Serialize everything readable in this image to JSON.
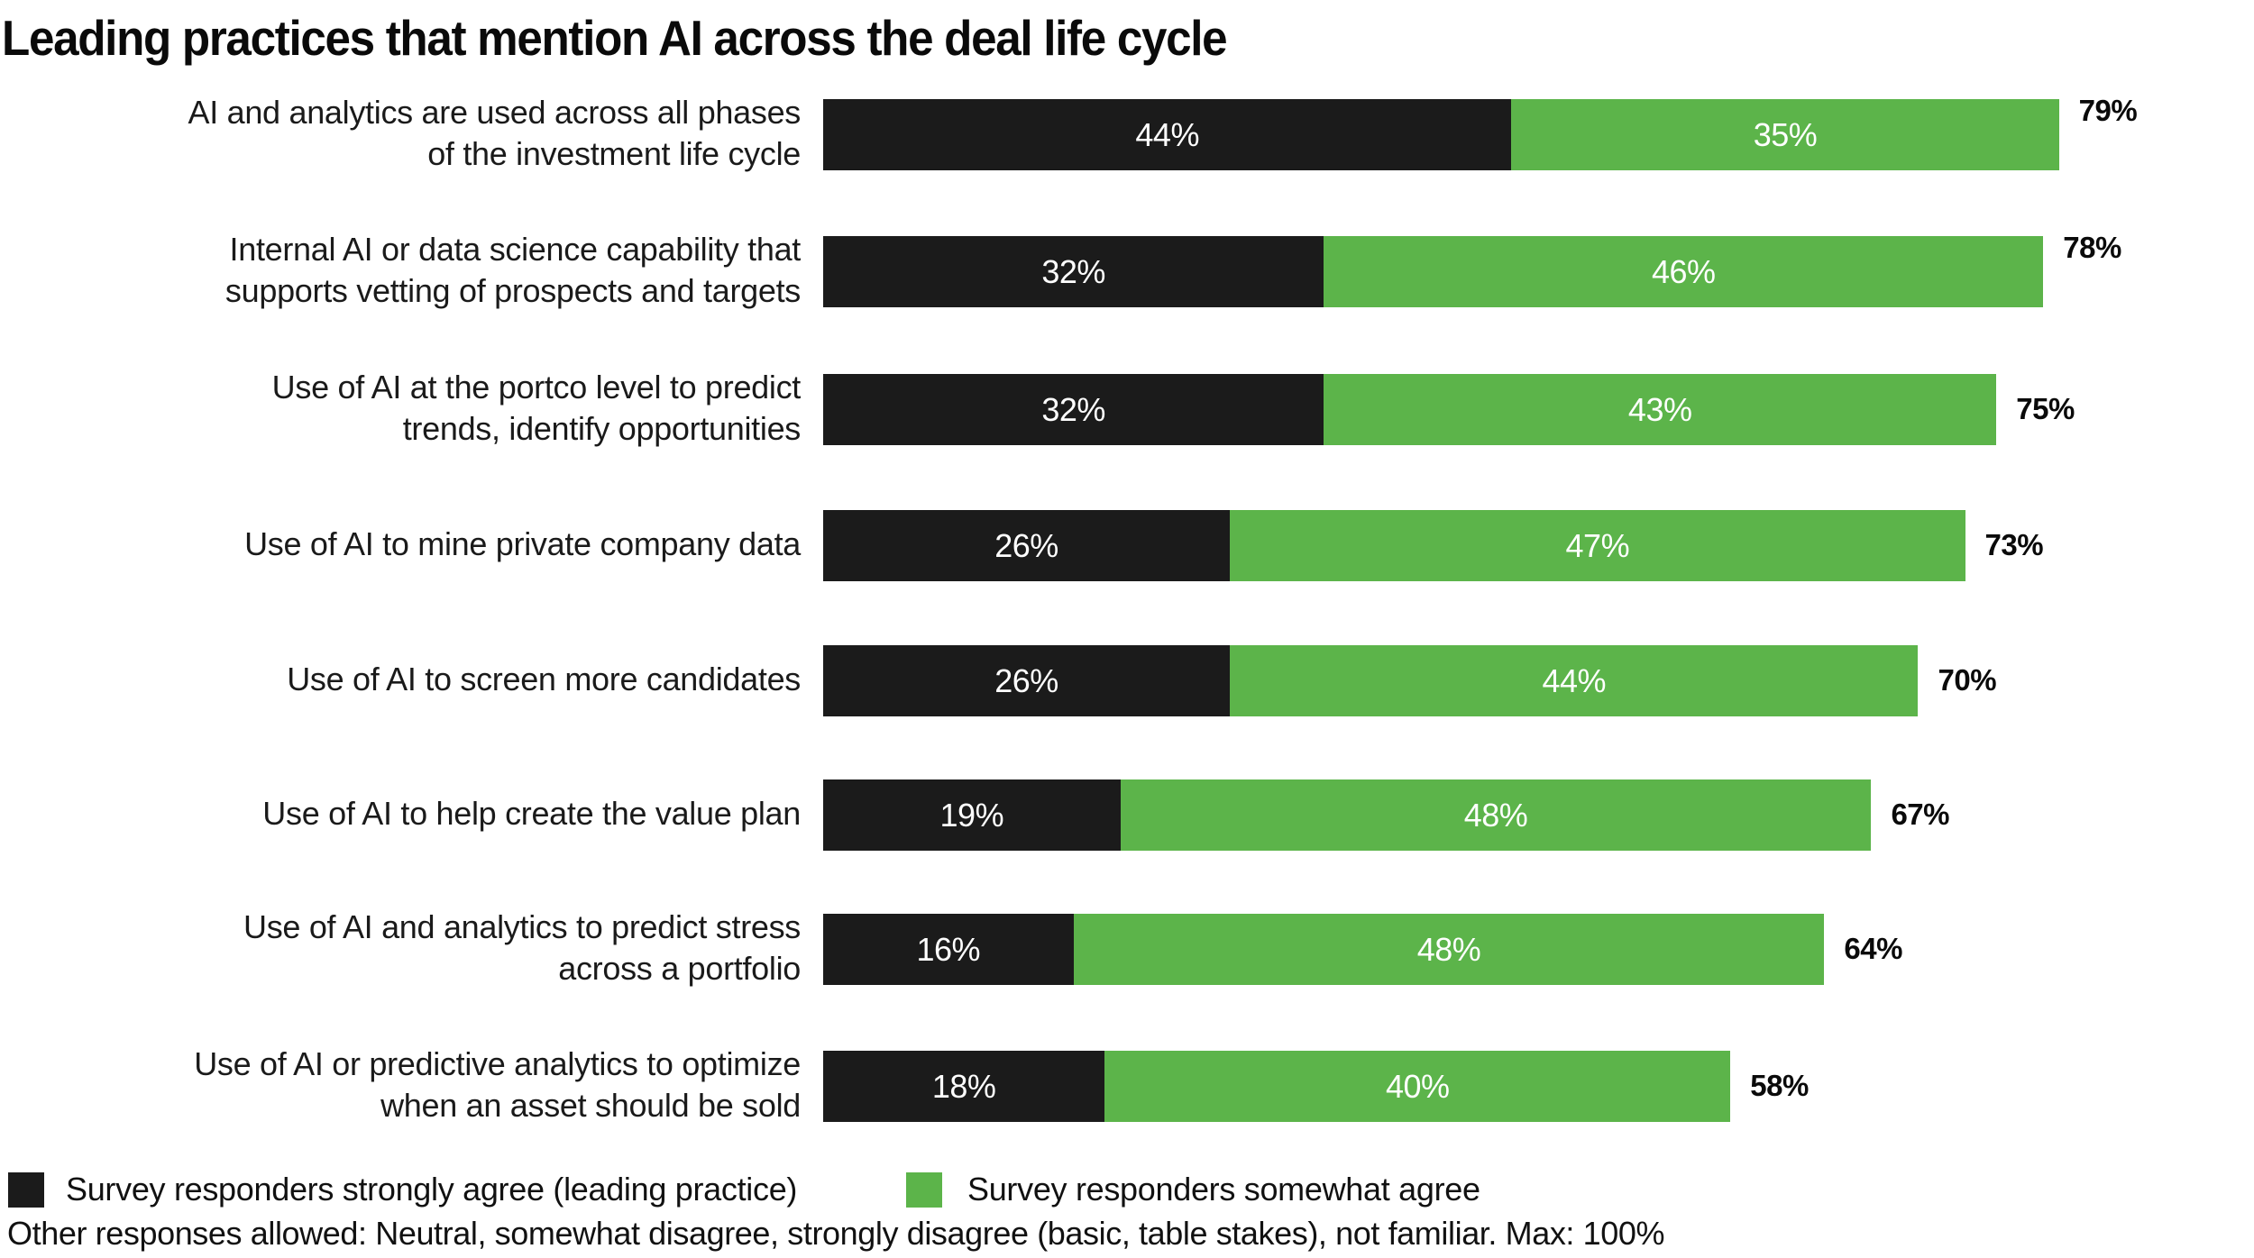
{
  "chart_data": {
    "type": "bar",
    "orientation": "horizontal",
    "stacked": true,
    "title": "Leading practices that mention AI across the deal life cycle",
    "xlabel": "",
    "ylabel": "",
    "xlim": [
      0,
      100
    ],
    "grid": false,
    "categories": [
      [
        "AI and analytics are used across all phases",
        "of the investment life cycle"
      ],
      [
        "Internal AI or data science capability that",
        "supports vetting of prospects and targets"
      ],
      [
        "Use of AI at the portco level to predict",
        "trends, identify opportunities"
      ],
      [
        "Use of AI to mine private company data"
      ],
      [
        "Use of AI to screen more candidates"
      ],
      [
        "Use of AI to help create the value plan"
      ],
      [
        "Use of AI and analytics to predict stress",
        "across a portfolio"
      ],
      [
        "Use of AI or predictive analytics to optimize",
        "when an asset should be sold"
      ]
    ],
    "series": [
      {
        "name": "Survey responders strongly agree (leading practice)",
        "color": "#1b1b1b",
        "values": [
          44,
          32,
          32,
          26,
          26,
          19,
          16,
          18
        ],
        "labels": [
          "44%",
          "32%",
          "32%",
          "26%",
          "26%",
          "19%",
          "16%",
          "18%"
        ]
      },
      {
        "name": "Survey responders somewhat agree",
        "color": "#5cb44a",
        "values": [
          35,
          46,
          43,
          47,
          44,
          48,
          48,
          40
        ],
        "labels": [
          "35%",
          "46%",
          "43%",
          "47%",
          "44%",
          "48%",
          "48%",
          "40%"
        ]
      }
    ],
    "totals": [
      79,
      78,
      75,
      73,
      70,
      67,
      64,
      58
    ],
    "total_labels": [
      "79%",
      "78%",
      "75%",
      "73%",
      "70%",
      "67%",
      "64%",
      "58%"
    ],
    "legend_position": "bottom-left"
  },
  "legend": {
    "strong": "Survey responders strongly agree (leading practice)",
    "somewhat": "Survey responders somewhat agree"
  },
  "footnote": "Other responses allowed: Neutral, somewhat disagree, strongly disagree (basic, table stakes), not familiar. Max: 100%"
}
